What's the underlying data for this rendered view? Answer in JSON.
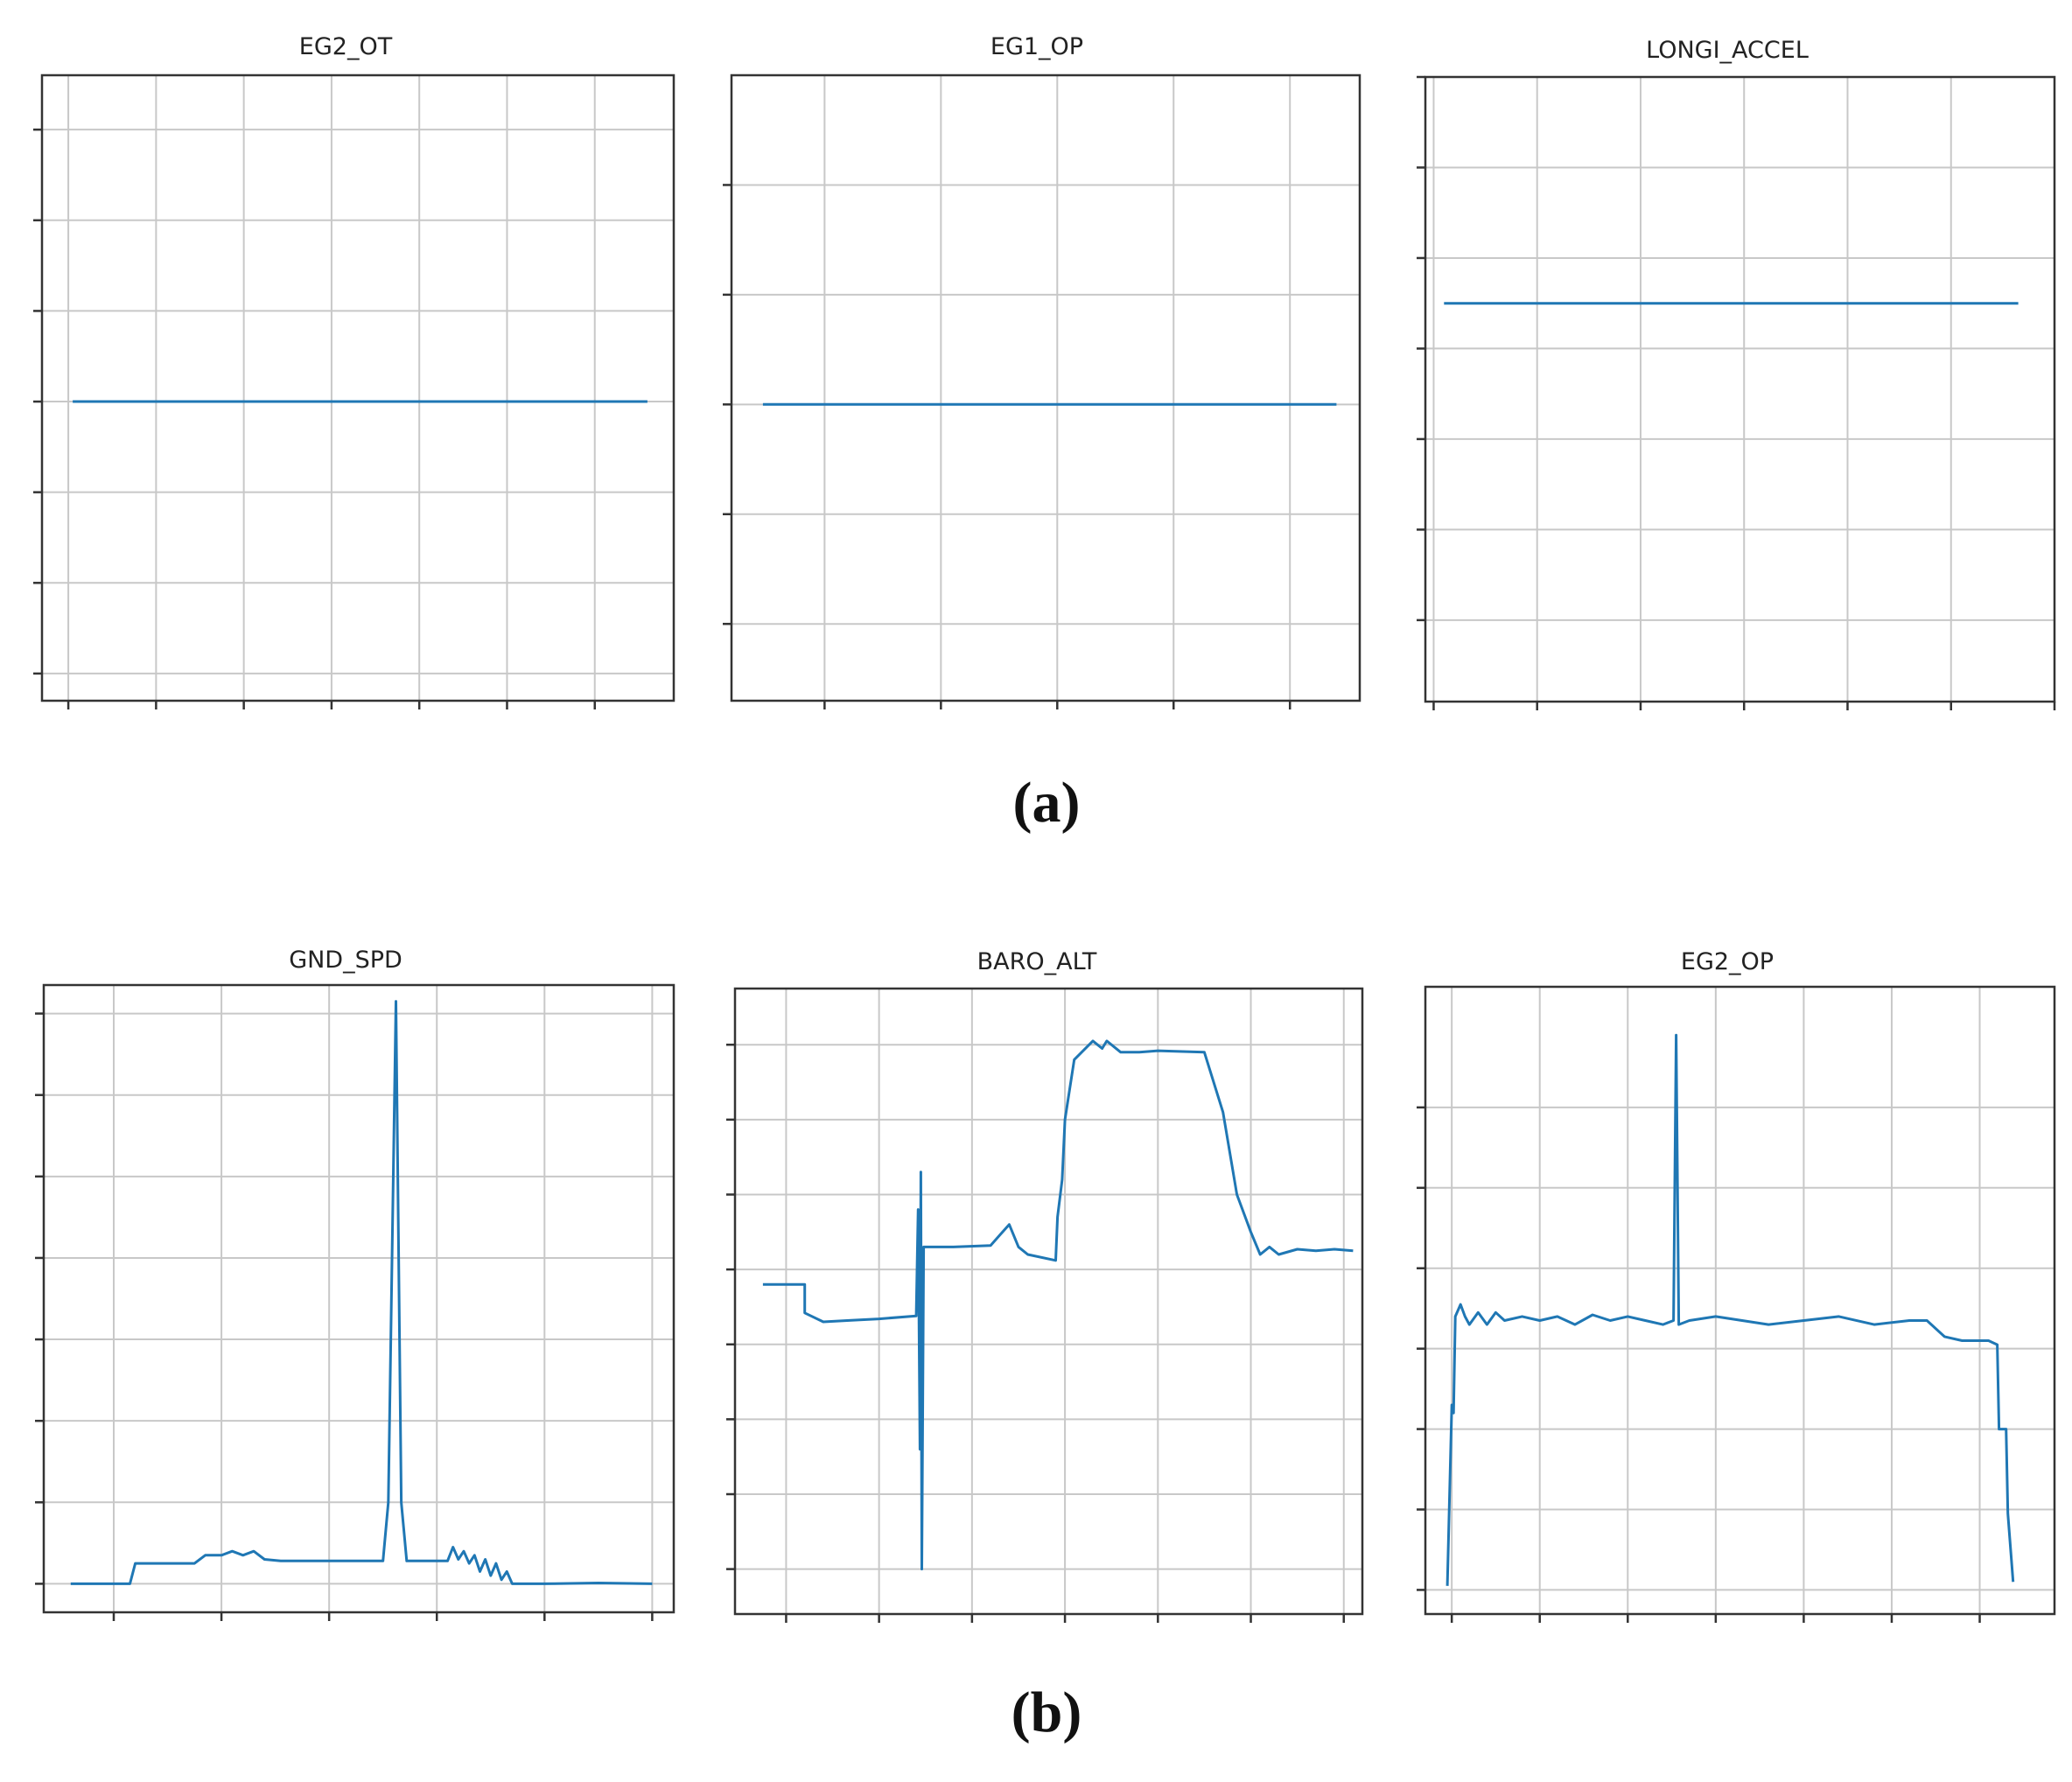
{
  "figure": {
    "captions": [
      "(a)",
      "(b)"
    ],
    "line_color": "#1f77b4",
    "grid_color": "#c8c8c8",
    "axis_color": "#333333"
  },
  "chart_data": [
    {
      "type": "line",
      "title": "EG2_OT",
      "xlabel": "",
      "ylabel": "",
      "xlim": [
        -0.3,
        6.9
      ],
      "ylim": [
        -0.3,
        6.6
      ],
      "xticks": [
        0,
        1,
        2,
        3,
        4,
        5,
        6
      ],
      "yticks": [
        0,
        1,
        2,
        3,
        4,
        5,
        6
      ],
      "grid": true,
      "tick_labels_shown": false,
      "series": [
        {
          "x": [
            0.05,
            6.6
          ],
          "y": [
            3.0,
            3.0
          ]
        }
      ]
    },
    {
      "type": "line",
      "title": "EG1_OP",
      "xlabel": "",
      "ylabel": "",
      "xlim": [
        -0.8,
        4.6
      ],
      "ylim": [
        0.3,
        6.0
      ],
      "xticks": [
        0,
        1,
        2,
        3,
        4
      ],
      "yticks": [
        1,
        2,
        3,
        4,
        5
      ],
      "grid": true,
      "tick_labels_shown": false,
      "series": [
        {
          "x": [
            -0.53,
            4.4
          ],
          "y": [
            3.0,
            3.0
          ]
        }
      ]
    },
    {
      "type": "line",
      "title": "LONGI_ACCEL",
      "xlabel": "",
      "ylabel": "",
      "xlim": [
        -0.08,
        6.0
      ],
      "ylim": [
        -0.9,
        6.0
      ],
      "xticks": [
        0,
        1,
        2,
        3,
        4,
        5,
        6
      ],
      "yticks": [
        0,
        1,
        2,
        3,
        4,
        5,
        6
      ],
      "grid": true,
      "tick_labels_shown": false,
      "series": [
        {
          "x": [
            0.1,
            5.65
          ],
          "y": [
            3.5,
            3.5
          ]
        }
      ]
    },
    {
      "type": "line",
      "title": "GND_SPD",
      "xlabel": "",
      "ylabel": "",
      "xlim": [
        -0.65,
        5.2
      ],
      "ylim": [
        -0.35,
        7.35
      ],
      "xticks": [
        0,
        1,
        2,
        3,
        4,
        5
      ],
      "yticks": [
        0,
        1,
        2,
        3,
        4,
        5,
        6,
        7
      ],
      "grid": true,
      "tick_labels_shown": false,
      "series": [
        {
          "x": [
            -0.4,
            0.15,
            0.2,
            0.75,
            0.85,
            1.0,
            1.1,
            1.2,
            1.3,
            1.4,
            1.55,
            2.0,
            2.5,
            2.55,
            2.62,
            2.67,
            2.72,
            3.1,
            3.15,
            3.2,
            3.25,
            3.3,
            3.35,
            3.4,
            3.45,
            3.5,
            3.55,
            3.6,
            3.65,
            3.7,
            3.8,
            4.0,
            4.5,
            5.0
          ],
          "y": [
            0.0,
            0.0,
            0.25,
            0.25,
            0.35,
            0.35,
            0.4,
            0.35,
            0.4,
            0.3,
            0.28,
            0.28,
            0.28,
            1.0,
            7.15,
            1.0,
            0.28,
            0.28,
            0.45,
            0.3,
            0.4,
            0.25,
            0.35,
            0.15,
            0.3,
            0.1,
            0.25,
            0.05,
            0.15,
            0.0,
            0.0,
            0.0,
            0.01,
            0.0
          ]
        }
      ]
    },
    {
      "type": "line",
      "title": "BARO_ALT",
      "xlabel": "",
      "ylabel": "",
      "xlim": [
        -0.55,
        6.2
      ],
      "ylim": [
        -0.6,
        7.75
      ],
      "xticks": [
        0,
        1,
        2,
        3,
        4,
        5,
        6
      ],
      "yticks": [
        0,
        1,
        2,
        3,
        4,
        5,
        6,
        7
      ],
      "grid": true,
      "tick_labels_shown": false,
      "series": [
        {
          "x": [
            -0.25,
            0.2,
            0.2,
            0.4,
            0.7,
            1.0,
            1.4,
            1.42,
            1.44,
            1.45,
            1.46,
            1.48,
            1.5,
            1.8,
            2.2,
            2.4,
            2.5,
            2.6,
            2.9,
            2.92,
            2.97,
            3.0,
            3.1,
            3.3,
            3.4,
            3.45,
            3.6,
            3.8,
            4.0,
            4.5,
            4.7,
            4.85,
            5.0,
            5.1,
            5.2,
            5.3,
            5.5,
            5.7,
            5.9,
            6.1
          ],
          "y": [
            3.8,
            3.8,
            3.42,
            3.3,
            3.32,
            3.34,
            3.38,
            4.8,
            1.6,
            5.3,
            0.0,
            4.3,
            4.3,
            4.3,
            4.32,
            4.6,
            4.3,
            4.2,
            4.12,
            4.7,
            5.2,
            6.0,
            6.8,
            7.05,
            6.95,
            7.05,
            6.9,
            6.9,
            6.92,
            6.9,
            6.1,
            5.0,
            4.5,
            4.2,
            4.3,
            4.2,
            4.27,
            4.25,
            4.27,
            4.25
          ]
        }
      ]
    },
    {
      "type": "line",
      "title": "EG2_OP",
      "xlabel": "",
      "ylabel": "",
      "xlim": [
        -0.3,
        6.85
      ],
      "ylim": [
        -0.3,
        7.5
      ],
      "xticks": [
        0,
        1,
        2,
        3,
        4,
        5,
        6
      ],
      "yticks": [
        0,
        1,
        2,
        3,
        4,
        5,
        6
      ],
      "grid": true,
      "tick_labels_shown": false,
      "series": [
        {
          "x": [
            -0.05,
            0.0,
            0.02,
            0.04,
            0.1,
            0.15,
            0.2,
            0.3,
            0.4,
            0.5,
            0.6,
            0.8,
            1.0,
            1.2,
            1.4,
            1.6,
            1.8,
            2.0,
            2.2,
            2.4,
            2.52,
            2.55,
            2.58,
            2.7,
            3.0,
            3.3,
            3.6,
            4.0,
            4.4,
            4.8,
            5.2,
            5.4,
            5.6,
            5.8,
            6.1,
            6.2,
            6.22,
            6.3,
            6.32,
            6.38
          ],
          "y": [
            0.05,
            2.3,
            2.2,
            3.4,
            3.55,
            3.4,
            3.3,
            3.45,
            3.3,
            3.45,
            3.35,
            3.4,
            3.35,
            3.4,
            3.3,
            3.42,
            3.35,
            3.4,
            3.35,
            3.3,
            3.35,
            6.9,
            3.3,
            3.35,
            3.4,
            3.35,
            3.3,
            3.35,
            3.4,
            3.3,
            3.35,
            3.35,
            3.15,
            3.1,
            3.1,
            3.05,
            2.0,
            2.0,
            0.95,
            0.1
          ]
        }
      ]
    }
  ]
}
